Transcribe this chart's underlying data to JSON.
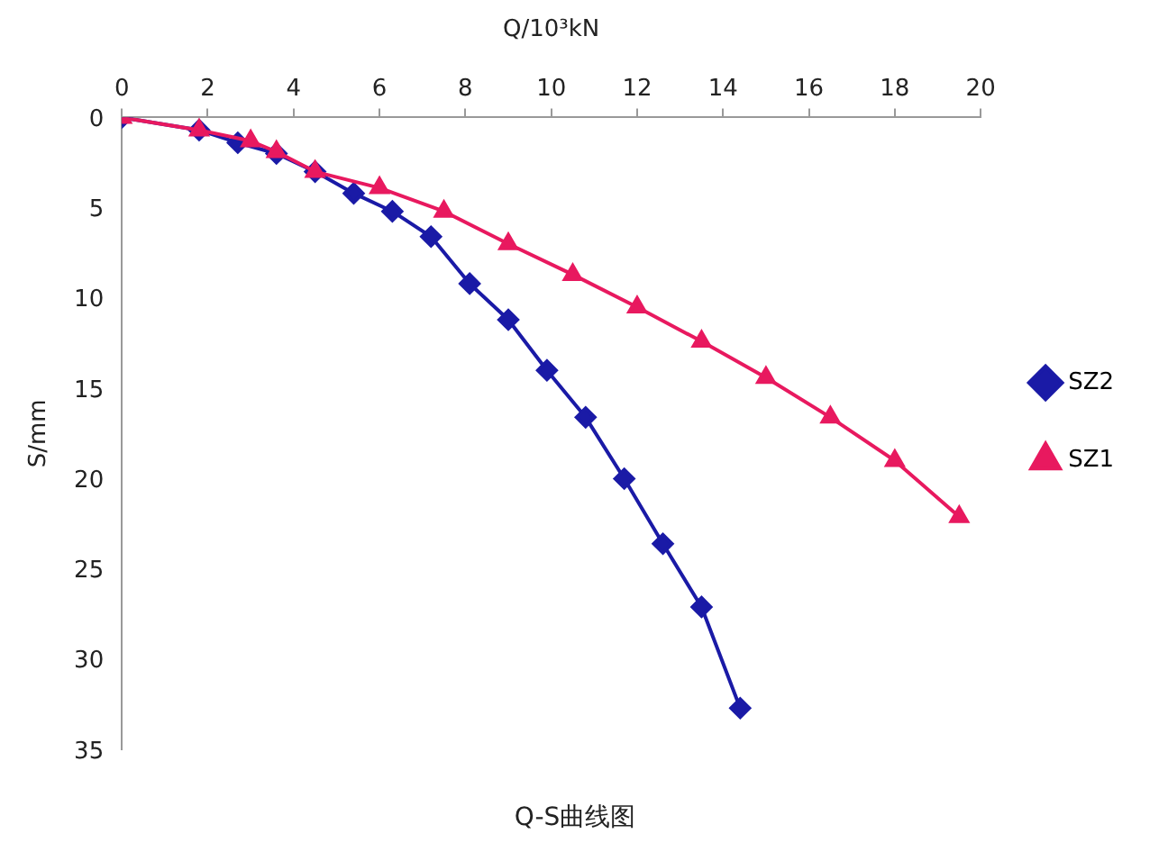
{
  "chart_data": {
    "type": "line",
    "title": "Q-S曲线图",
    "xlabel": "Q/10³kN",
    "ylabel": "S/mm",
    "xlim": [
      0,
      20
    ],
    "xticks": [
      0,
      2,
      4,
      6,
      8,
      10,
      12,
      14,
      16,
      18,
      20
    ],
    "ylim": [
      35,
      0
    ],
    "yticks": [
      0,
      5,
      10,
      15,
      20,
      25,
      30,
      35
    ],
    "grid": false,
    "legend": "right",
    "line_style": "solid",
    "series": [
      {
        "name": "SZ2",
        "color": "#1a1aa6",
        "marker": "diamond",
        "x": [
          0,
          1.8,
          2.7,
          3.6,
          4.5,
          5.4,
          6.3,
          7.2,
          8.1,
          9.0,
          9.9,
          10.8,
          11.7,
          12.6,
          13.5,
          14.4
        ],
        "values": [
          0,
          0.7,
          1.4,
          2.0,
          3.0,
          4.2,
          5.2,
          6.6,
          9.2,
          11.2,
          14.0,
          16.6,
          20.0,
          23.6,
          27.1,
          32.7
        ]
      },
      {
        "name": "SZ1",
        "color": "#e8195f",
        "marker": "triangle",
        "x": [
          0,
          1.8,
          3.0,
          3.6,
          4.5,
          6.0,
          7.5,
          9.0,
          10.5,
          12.0,
          13.5,
          15.0,
          16.5,
          18.0,
          19.5
        ],
        "values": [
          0,
          0.7,
          1.3,
          1.9,
          3.0,
          3.9,
          5.2,
          7.0,
          8.7,
          10.5,
          12.4,
          14.4,
          16.6,
          19.0,
          22.1
        ]
      }
    ]
  }
}
